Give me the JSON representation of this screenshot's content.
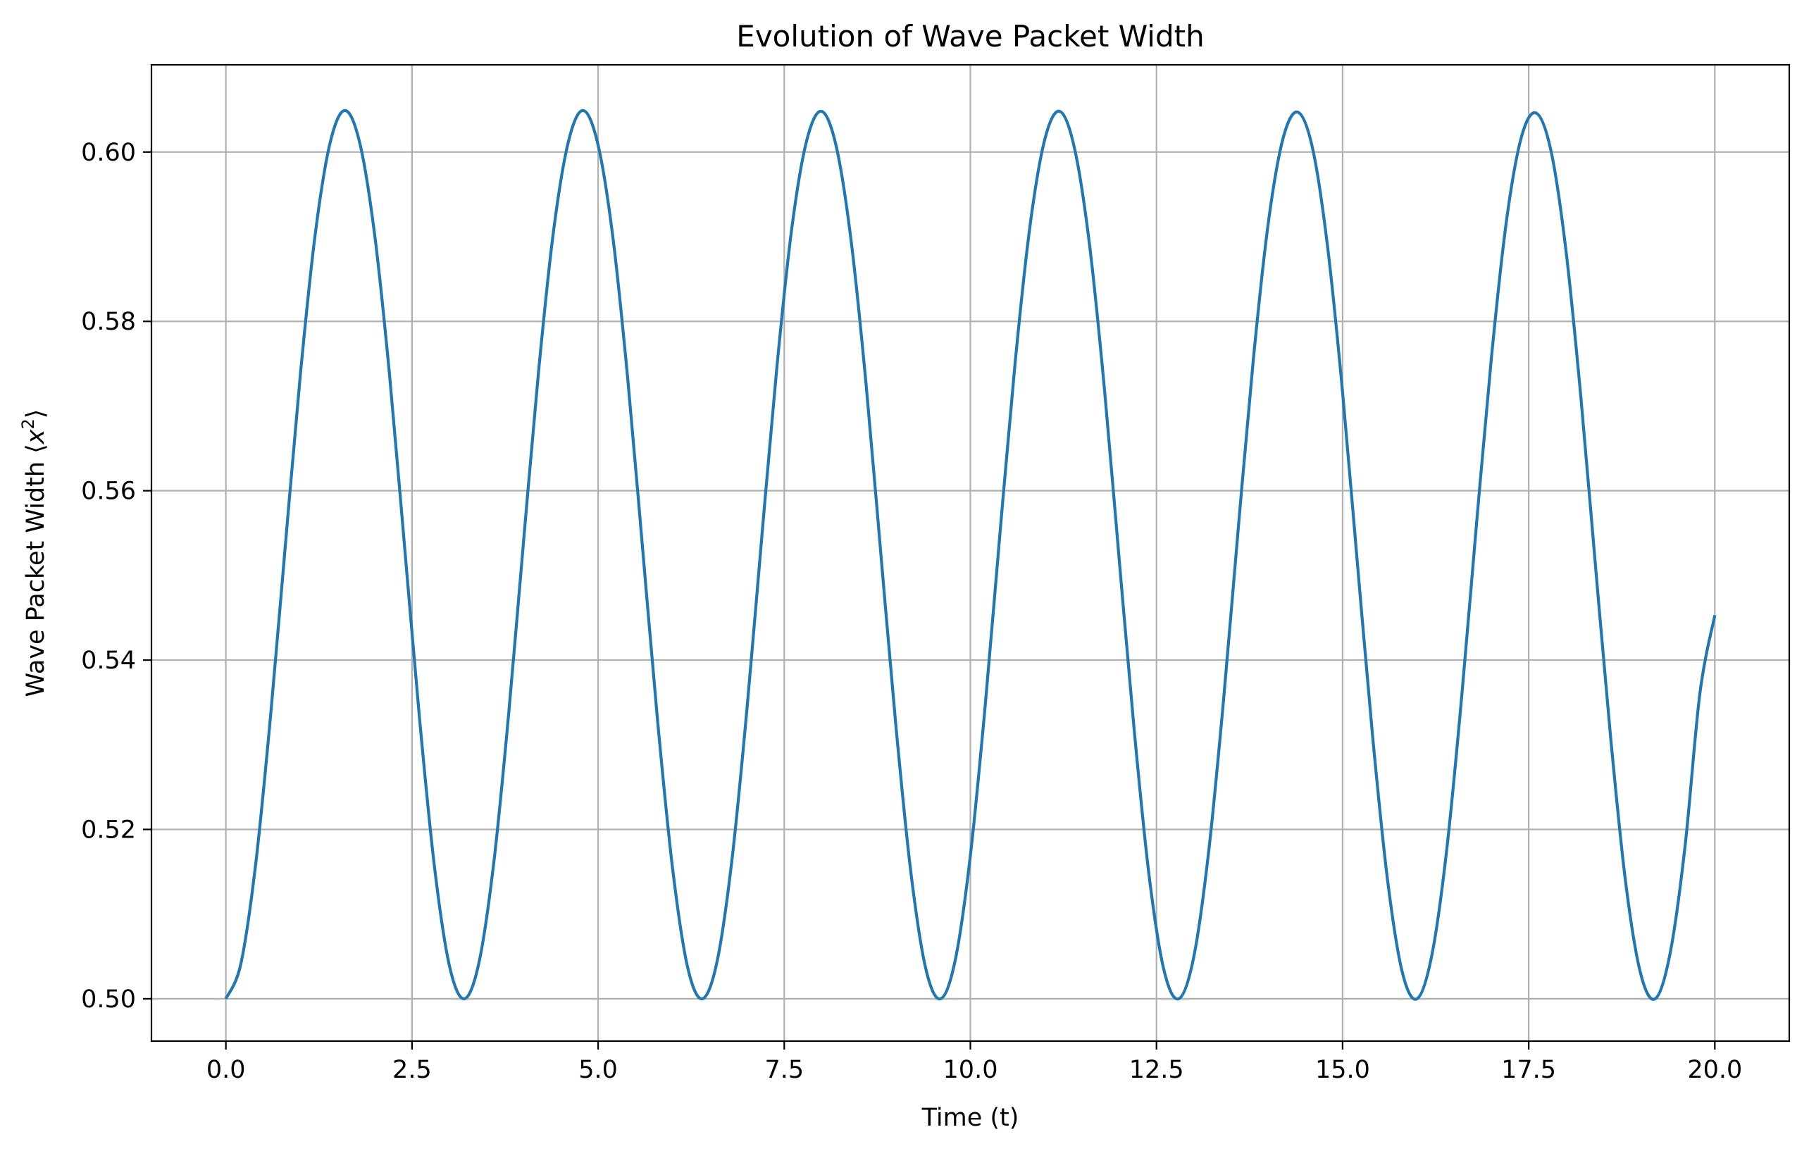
{
  "chart_data": {
    "type": "line",
    "title": "Evolution of Wave Packet Width",
    "xlabel": "Time (t)",
    "ylabel": "Wave Packet Width ⟨x²⟩",
    "ylabel_parts": {
      "prefix": "Wave Packet Width ⟨",
      "var": "x",
      "exp": "2",
      "suffix": "⟩"
    },
    "xlim": [
      -1.0,
      21.0
    ],
    "ylim": [
      0.495,
      0.6103
    ],
    "xticks": [
      0.0,
      2.5,
      5.0,
      7.5,
      10.0,
      12.5,
      15.0,
      17.5,
      20.0
    ],
    "xtick_labels": [
      "0.0",
      "2.5",
      "5.0",
      "7.5",
      "10.0",
      "12.5",
      "15.0",
      "17.5",
      "20.0"
    ],
    "yticks": [
      0.5,
      0.52,
      0.54,
      0.56,
      0.58,
      0.6
    ],
    "ytick_labels": [
      "0.50",
      "0.52",
      "0.54",
      "0.56",
      "0.58",
      "0.60"
    ],
    "grid": true,
    "legend": "none",
    "series": [
      {
        "color": "#1f77b4",
        "x": [
          0.0,
          0.2,
          0.4,
          0.6,
          0.8,
          1.0,
          1.2,
          1.4,
          1.6,
          1.8,
          2.0,
          2.2,
          2.4,
          2.6,
          2.8,
          3.0,
          3.2,
          3.4,
          3.6,
          3.8,
          4.0,
          4.2,
          4.4,
          4.6,
          4.8,
          5.0,
          5.2,
          5.4,
          5.6,
          5.8,
          6.0,
          6.2,
          6.4,
          6.6,
          6.8,
          7.0,
          7.2,
          7.4,
          7.6,
          7.8,
          8.0,
          8.2,
          8.4,
          8.6,
          8.8,
          9.0,
          9.2,
          9.4,
          9.6,
          9.8,
          10.0,
          10.2,
          10.4,
          10.6,
          10.8,
          11.0,
          11.2,
          11.4,
          11.6,
          11.8,
          12.0,
          12.2,
          12.4,
          12.6,
          12.8,
          13.0,
          13.2,
          13.4,
          13.6,
          13.8,
          14.0,
          14.2,
          14.4,
          14.6,
          14.8,
          15.0,
          15.2,
          15.4,
          15.6,
          15.8,
          16.0,
          16.2,
          16.4,
          16.6,
          16.8,
          17.0,
          17.2,
          17.4,
          17.6,
          17.8,
          18.0,
          18.2,
          18.4,
          18.6,
          18.8,
          19.0,
          19.2,
          19.4,
          19.6,
          19.8,
          20.0
        ],
        "y": [
          0.5,
          0.5041,
          0.5159,
          0.5334,
          0.5537,
          0.5737,
          0.5903,
          0.6011,
          0.6049,
          0.601,
          0.5901,
          0.5735,
          0.5534,
          0.5332,
          0.5157,
          0.504,
          0.5,
          0.5043,
          0.5162,
          0.5338,
          0.5542,
          0.5741,
          0.5906,
          0.6012,
          0.6049,
          0.6008,
          0.5898,
          0.573,
          0.5529,
          0.5327,
          0.5154,
          0.5038,
          0.5,
          0.5045,
          0.5166,
          0.5343,
          0.5547,
          0.5745,
          0.5909,
          0.6013,
          0.6048,
          0.6006,
          0.5894,
          0.5725,
          0.5523,
          0.5322,
          0.515,
          0.5036,
          0.5,
          0.5047,
          0.5169,
          0.5347,
          0.5552,
          0.575,
          0.5912,
          0.6015,
          0.6048,
          0.6004,
          0.5891,
          0.5721,
          0.5518,
          0.5318,
          0.5146,
          0.5034,
          0.5,
          0.5049,
          0.5173,
          0.5352,
          0.5557,
          0.5754,
          0.5915,
          0.6016,
          0.6047,
          0.6003,
          0.5887,
          0.5716,
          0.5513,
          0.5313,
          0.5143,
          0.5032,
          0.5,
          0.5052,
          0.5177,
          0.5357,
          0.5562,
          0.5758,
          0.5918,
          0.6017,
          0.6046,
          0.6001,
          0.5884,
          0.5711,
          0.5508,
          0.5309,
          0.5139,
          0.5031,
          0.5,
          0.5054,
          0.518,
          0.5361,
          0.5453
        ]
      }
    ]
  }
}
